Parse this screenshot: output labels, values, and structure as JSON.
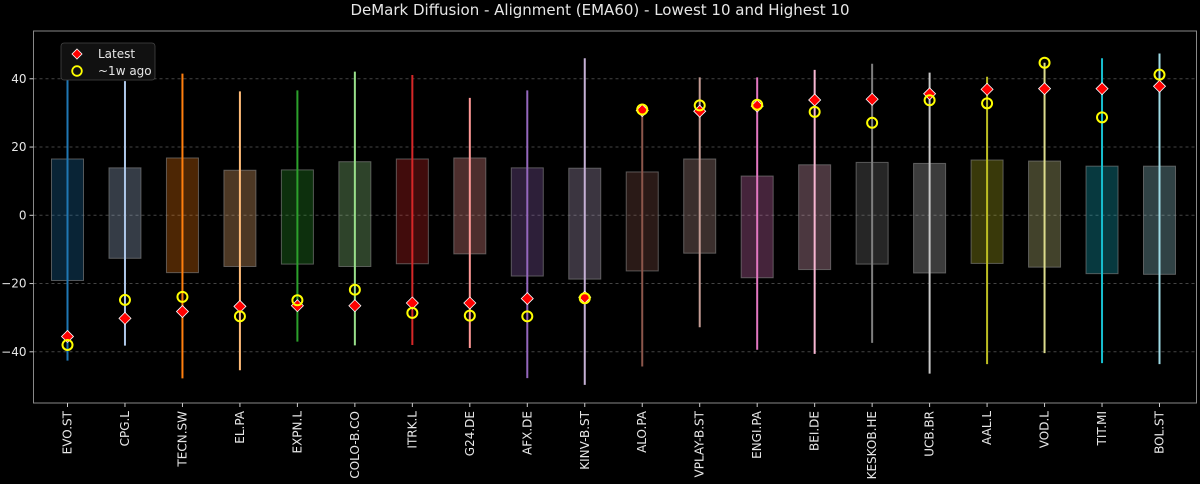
{
  "chart_data": {
    "type": "range-box",
    "title": "DeMark Diffusion - Alignment (EMA60) - Lowest 10 and Highest 10",
    "xlabel": "",
    "ylabel": "",
    "ylim": [
      -55,
      54
    ],
    "yticks": [
      -40,
      -20,
      0,
      20,
      40
    ],
    "grid": "horizontal dashed",
    "legend_position": "top-left",
    "categories": [
      "EVO.ST",
      "CPG.L",
      "TECN.SW",
      "EL.PA",
      "EXPN.L",
      "COLO-B.CO",
      "ITRK.L",
      "G24.DE",
      "AFX.DE",
      "KINV-B.ST",
      "ALO.PA",
      "VPLAY-B.ST",
      "ENGI.PA",
      "BEI.DE",
      "KESKOB.HE",
      "UCB.BR",
      "AAL.L",
      "VOD.L",
      "TIT.MI",
      "BOL.ST"
    ],
    "colors": [
      "#1f77b4",
      "#aec7e8",
      "#ff7f0e",
      "#ffbb78",
      "#2ca02c",
      "#98df8a",
      "#d62728",
      "#ff9896",
      "#9467bd",
      "#c5b0d5",
      "#8c564b",
      "#c49c94",
      "#e377c2",
      "#f7b6d2",
      "#7f7f7f",
      "#c7c7c7",
      "#bcbd22",
      "#dbdb8d",
      "#17becf",
      "#9edae5"
    ],
    "range_min": [
      -42.6,
      -38.2,
      -47.8,
      -45.4,
      -37.0,
      -38.1,
      -38.0,
      -38.9,
      -47.7,
      -49.7,
      -44.3,
      -32.8,
      -39.4,
      -40.6,
      -37.4,
      -46.4,
      -43.6,
      -40.4,
      -43.3,
      -43.6
    ],
    "range_max": [
      49.1,
      39.3,
      41.5,
      36.3,
      36.6,
      42.1,
      41.1,
      34.4,
      36.6,
      46.0,
      30.6,
      40.4,
      40.4,
      42.6,
      44.4,
      41.8,
      40.6,
      44.7,
      46.0,
      47.4
    ],
    "box_low": [
      -19.1,
      -12.6,
      -16.8,
      -15.0,
      -14.3,
      -15.0,
      -14.2,
      -11.3,
      -17.8,
      -18.7,
      -16.3,
      -11.1,
      -18.3,
      -15.9,
      -14.3,
      -16.9,
      -14.1,
      -15.2,
      -17.1,
      -17.3
    ],
    "box_high": [
      16.5,
      13.9,
      16.8,
      13.2,
      13.3,
      15.7,
      16.5,
      16.8,
      13.9,
      13.8,
      12.7,
      16.5,
      11.5,
      14.8,
      15.5,
      15.2,
      16.2,
      15.9,
      14.4,
      14.4
    ],
    "series": [
      {
        "name": "Latest",
        "marker": "diamond",
        "color": "#ff0000",
        "values": [
          -35.5,
          -30.2,
          -28.2,
          -26.7,
          -26.5,
          -26.5,
          -25.7,
          -25.7,
          -24.4,
          -24.0,
          30.7,
          30.5,
          32.0,
          33.8,
          34.0,
          35.6,
          36.9,
          37.1,
          37.1,
          37.8
        ]
      },
      {
        "name": "~1w ago",
        "marker": "circle",
        "color": "#ffff00",
        "values": [
          -38.0,
          -24.8,
          -23.9,
          -29.6,
          -24.9,
          -21.8,
          -28.6,
          -29.4,
          -29.6,
          -24.3,
          31.0,
          32.2,
          32.4,
          30.3,
          27.1,
          33.7,
          32.8,
          44.7,
          28.7,
          41.2
        ]
      }
    ]
  }
}
